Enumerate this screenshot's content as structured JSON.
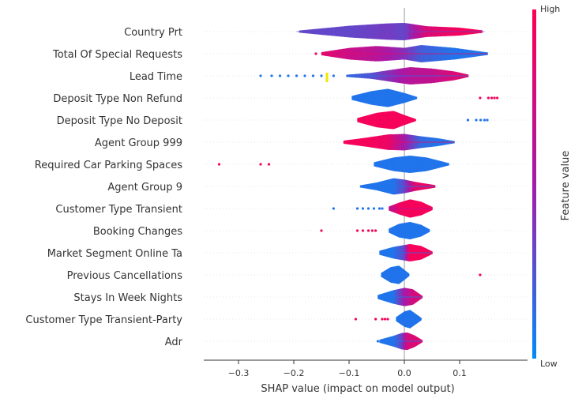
{
  "chart_data": {
    "type": "violin",
    "xlabel": "SHAP value (impact on model output)",
    "xlim": [
      -0.36,
      0.235
    ],
    "xticks": [
      -0.3,
      -0.2,
      -0.1,
      0.0,
      0.1
    ],
    "xtick_labels": [
      "−0.3",
      "−0.2",
      "−0.1",
      "0.0",
      "0.1"
    ],
    "colorbar": {
      "label": "Feature value",
      "high_label": "High",
      "low_label": "Low",
      "high_color": "#ff0052",
      "mid_color": "#a51aa9",
      "low_color": "#008bfb"
    },
    "features": [
      {
        "name": "Country Prt",
        "min": -0.195,
        "max": 0.145,
        "left": -0.08,
        "right": 0.05,
        "segments": [
          [
            -0.19,
            0.3,
            0.1
          ],
          [
            -0.1,
            0.3,
            0.6
          ],
          [
            -0.03,
            0.35,
            0.85
          ],
          [
            0.0,
            0.3,
            0.9
          ],
          [
            0.04,
            0.8,
            0.55
          ],
          [
            0.1,
            0.95,
            0.4
          ],
          [
            0.14,
            0.95,
            0.12
          ]
        ],
        "outliers": []
      },
      {
        "name": "Total Of Special Requests",
        "min": -0.15,
        "max": 0.15,
        "left": -0.06,
        "right": 0.05,
        "segments": [
          [
            -0.15,
            0.85,
            0.15
          ],
          [
            -0.1,
            0.7,
            0.6
          ],
          [
            -0.05,
            0.6,
            0.8
          ],
          [
            0.0,
            0.4,
            0.6
          ],
          [
            0.03,
            0.2,
            0.9
          ],
          [
            0.09,
            0.1,
            0.6
          ],
          [
            0.15,
            0.1,
            0.12
          ]
        ],
        "outliers": [
          {
            "x": -0.16,
            "v": 0.95
          }
        ]
      },
      {
        "name": "Lead Time",
        "min": -0.105,
        "max": 0.115,
        "left": -0.02,
        "right": 0.02,
        "segments": [
          [
            -0.105,
            0.15,
            0.1
          ],
          [
            -0.06,
            0.25,
            0.3
          ],
          [
            -0.02,
            0.45,
            0.65
          ],
          [
            0.01,
            0.6,
            0.9
          ],
          [
            0.05,
            0.65,
            0.75
          ],
          [
            0.09,
            0.8,
            0.45
          ],
          [
            0.115,
            0.9,
            0.12
          ]
        ],
        "outliers": [
          {
            "x": -0.26,
            "v": 0.1
          },
          {
            "x": -0.24,
            "v": 0.1
          },
          {
            "x": -0.225,
            "v": 0.1
          },
          {
            "x": -0.21,
            "v": 0.1
          },
          {
            "x": -0.195,
            "v": 0.1
          },
          {
            "x": -0.18,
            "v": 0.1
          },
          {
            "x": -0.165,
            "v": 0.1
          },
          {
            "x": -0.15,
            "v": 0.1
          },
          {
            "x": -0.128,
            "v": 0.1
          }
        ]
      },
      {
        "name": "Deposit Type Non Refund",
        "min": -0.095,
        "max": 0.022,
        "left": -0.035,
        "right": 0.0,
        "segments": [
          [
            -0.095,
            0.1,
            0.2
          ],
          [
            -0.06,
            0.1,
            0.7
          ],
          [
            -0.03,
            0.1,
            0.95
          ],
          [
            0.0,
            0.1,
            0.5
          ],
          [
            0.022,
            0.1,
            0.1
          ]
        ],
        "outliers": [
          {
            "x": 0.137,
            "v": 0.95
          },
          {
            "x": 0.152,
            "v": 0.95
          },
          {
            "x": 0.158,
            "v": 0.95
          },
          {
            "x": 0.163,
            "v": 0.95
          },
          {
            "x": 0.168,
            "v": 0.95
          }
        ]
      },
      {
        "name": "Deposit Type No Deposit",
        "min": -0.085,
        "max": 0.02,
        "left": -0.03,
        "right": 0.0,
        "segments": [
          [
            -0.085,
            0.95,
            0.2
          ],
          [
            -0.05,
            0.95,
            0.75
          ],
          [
            -0.02,
            0.95,
            0.95
          ],
          [
            0.0,
            0.95,
            0.5
          ],
          [
            0.02,
            0.95,
            0.1
          ]
        ],
        "outliers": [
          {
            "x": 0.115,
            "v": 0.1
          },
          {
            "x": 0.13,
            "v": 0.1
          },
          {
            "x": 0.138,
            "v": 0.1
          },
          {
            "x": 0.145,
            "v": 0.1
          },
          {
            "x": 0.15,
            "v": 0.1
          }
        ]
      },
      {
        "name": "Agent Group 999",
        "min": -0.11,
        "max": 0.09,
        "left": -0.05,
        "right": 0.03,
        "segments": [
          [
            -0.11,
            0.95,
            0.15
          ],
          [
            -0.07,
            0.95,
            0.45
          ],
          [
            -0.03,
            0.9,
            0.8
          ],
          [
            0.0,
            0.5,
            0.85
          ],
          [
            0.03,
            0.15,
            0.6
          ],
          [
            0.06,
            0.1,
            0.4
          ],
          [
            0.09,
            0.1,
            0.1
          ]
        ],
        "outliers": []
      },
      {
        "name": "Required Car Parking Spaces",
        "min": -0.055,
        "max": 0.08,
        "left": -0.025,
        "right": 0.02,
        "segments": [
          [
            -0.055,
            0.1,
            0.2
          ],
          [
            -0.02,
            0.1,
            0.7
          ],
          [
            0.01,
            0.1,
            0.9
          ],
          [
            0.04,
            0.1,
            0.7
          ],
          [
            0.08,
            0.1,
            0.1
          ]
        ],
        "outliers": [
          {
            "x": -0.335,
            "v": 0.95
          },
          {
            "x": -0.26,
            "v": 0.95
          },
          {
            "x": -0.245,
            "v": 0.95
          }
        ]
      },
      {
        "name": "Agent Group 9",
        "min": -0.08,
        "max": 0.055,
        "left": -0.04,
        "right": 0.0,
        "segments": [
          [
            -0.08,
            0.1,
            0.1
          ],
          [
            -0.05,
            0.1,
            0.4
          ],
          [
            -0.02,
            0.1,
            0.85
          ],
          [
            0.0,
            0.3,
            0.7
          ],
          [
            0.02,
            0.85,
            0.45
          ],
          [
            0.055,
            0.9,
            0.12
          ]
        ],
        "outliers": []
      },
      {
        "name": "Customer Type Transient",
        "min": -0.028,
        "max": 0.05,
        "left": -0.005,
        "right": 0.01,
        "segments": [
          [
            -0.028,
            0.6,
            0.2
          ],
          [
            -0.01,
            0.9,
            0.6
          ],
          [
            0.01,
            0.95,
            0.95
          ],
          [
            0.03,
            0.95,
            0.7
          ],
          [
            0.05,
            0.95,
            0.15
          ]
        ],
        "outliers": [
          {
            "x": -0.128,
            "v": 0.1
          },
          {
            "x": -0.085,
            "v": 0.1
          },
          {
            "x": -0.075,
            "v": 0.1
          },
          {
            "x": -0.065,
            "v": 0.1
          },
          {
            "x": -0.055,
            "v": 0.1
          },
          {
            "x": -0.045,
            "v": 0.1
          },
          {
            "x": -0.04,
            "v": 0.1
          }
        ]
      },
      {
        "name": "Booking Changes",
        "min": -0.028,
        "max": 0.045,
        "left": -0.005,
        "right": 0.01,
        "segments": [
          [
            -0.028,
            0.1,
            0.2
          ],
          [
            -0.01,
            0.1,
            0.7
          ],
          [
            0.01,
            0.1,
            0.9
          ],
          [
            0.03,
            0.1,
            0.6
          ],
          [
            0.045,
            0.1,
            0.12
          ]
        ],
        "outliers": [
          {
            "x": -0.15,
            "v": 0.95
          },
          {
            "x": -0.085,
            "v": 0.95
          },
          {
            "x": -0.075,
            "v": 0.95
          },
          {
            "x": -0.065,
            "v": 0.95
          },
          {
            "x": -0.058,
            "v": 0.95
          },
          {
            "x": -0.052,
            "v": 0.95
          }
        ]
      },
      {
        "name": "Market Segment Online Ta",
        "min": -0.045,
        "max": 0.05,
        "left": -0.02,
        "right": 0.015,
        "segments": [
          [
            -0.045,
            0.1,
            0.2
          ],
          [
            -0.02,
            0.1,
            0.6
          ],
          [
            0.0,
            0.3,
            0.8
          ],
          [
            0.01,
            0.95,
            0.9
          ],
          [
            0.03,
            0.95,
            0.7
          ],
          [
            0.05,
            0.95,
            0.12
          ]
        ],
        "outliers": []
      },
      {
        "name": "Previous Cancellations",
        "min": -0.042,
        "max": 0.008,
        "left": -0.02,
        "right": -0.005,
        "segments": [
          [
            -0.042,
            0.1,
            0.2
          ],
          [
            -0.025,
            0.1,
            0.8
          ],
          [
            -0.01,
            0.1,
            0.95
          ],
          [
            0.008,
            0.1,
            0.12
          ]
        ],
        "outliers": [
          {
            "x": 0.137,
            "v": 0.95
          }
        ]
      },
      {
        "name": "Stays In Week Nights",
        "min": -0.048,
        "max": 0.032,
        "left": -0.015,
        "right": 0.01,
        "segments": [
          [
            -0.048,
            0.1,
            0.2
          ],
          [
            -0.02,
            0.1,
            0.7
          ],
          [
            0.0,
            0.5,
            0.95
          ],
          [
            0.015,
            0.75,
            0.8
          ],
          [
            0.032,
            0.8,
            0.1
          ]
        ],
        "outliers": []
      },
      {
        "name": "Customer Type Transient-Party",
        "min": -0.015,
        "max": 0.03,
        "left": 0.0,
        "right": 0.008,
        "segments": [
          [
            -0.015,
            0.1,
            0.2
          ],
          [
            0.0,
            0.1,
            0.8
          ],
          [
            0.01,
            0.1,
            0.95
          ],
          [
            0.03,
            0.1,
            0.12
          ]
        ],
        "outliers": [
          {
            "x": -0.088,
            "v": 0.95
          },
          {
            "x": -0.052,
            "v": 0.95
          },
          {
            "x": -0.04,
            "v": 0.95
          },
          {
            "x": -0.035,
            "v": 0.95
          },
          {
            "x": -0.03,
            "v": 0.95
          }
        ]
      },
      {
        "name": "Adr",
        "min": -0.045,
        "max": 0.032,
        "left": -0.012,
        "right": 0.008,
        "segments": [
          [
            -0.045,
            0.1,
            0.15
          ],
          [
            -0.02,
            0.1,
            0.55
          ],
          [
            -0.005,
            0.3,
            0.85
          ],
          [
            0.005,
            0.75,
            0.9
          ],
          [
            0.018,
            0.8,
            0.6
          ],
          [
            0.032,
            0.85,
            0.1
          ]
        ],
        "outliers": [
          {
            "x": -0.048,
            "v": 0.1
          },
          {
            "x": -0.043,
            "v": 0.1
          }
        ]
      }
    ],
    "highlight": [
      {
        "x": -0.14,
        "feature": "Lead Time",
        "color": "#f2e600"
      }
    ]
  }
}
